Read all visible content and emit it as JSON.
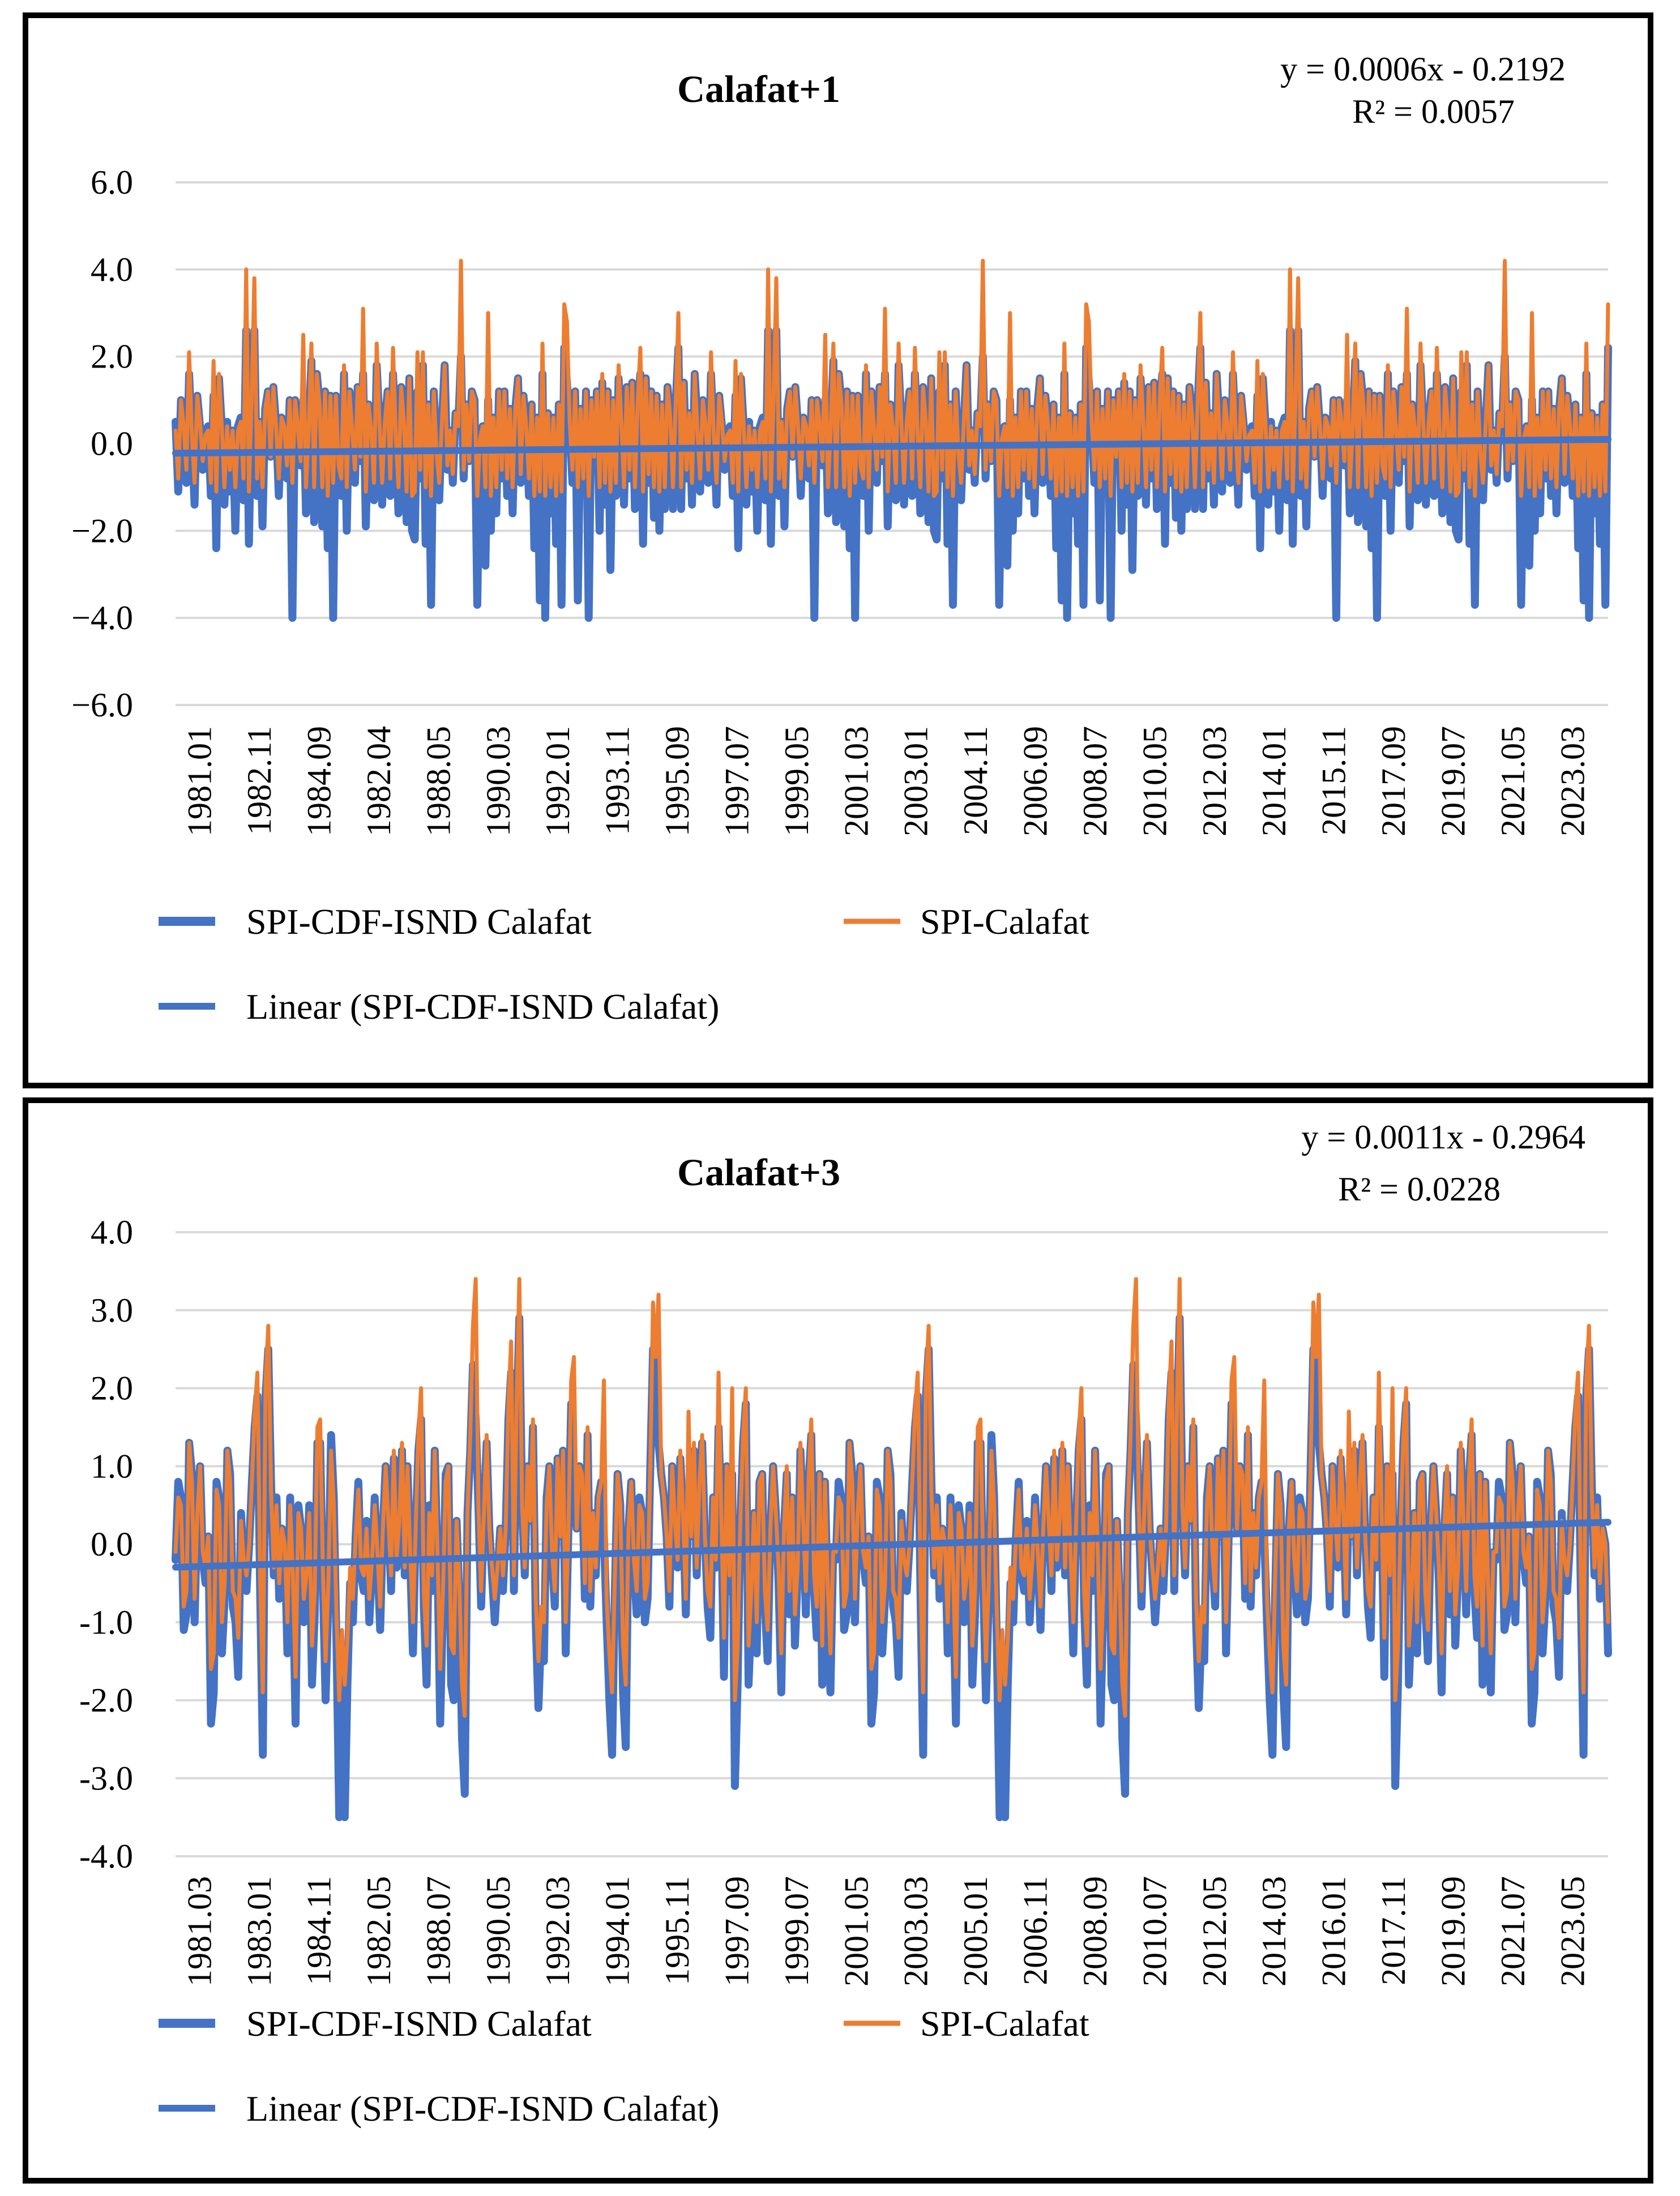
{
  "colors": {
    "cdf": "#4472C4",
    "spi": "#ED7D31",
    "trend": "#4472C4",
    "grid": "#D9D9D9"
  },
  "chart_data": [
    {
      "type": "line",
      "title": "Calafat+1",
      "equation": "y = 0.0006x - 0.2192",
      "r_squared": "R² = 0.0057",
      "ylim": [
        -6.0,
        6.0
      ],
      "yticks": [
        "6.0",
        "4.0",
        "2.0",
        "0.0",
        "−2.0",
        "−4.0",
        "−6.0"
      ],
      "ytick_values": [
        6,
        4,
        2,
        0,
        -2,
        -4,
        -6
      ],
      "x_tick_labels": [
        "1981.01",
        "1982.11",
        "1984.09",
        "1982.04",
        "1988.05",
        "1990.03",
        "1992.01",
        "1993.11",
        "1995.09",
        "1997.07",
        "1999.05",
        "2001.03",
        "2003.01",
        "2004.11",
        "2006.09",
        "2008.07",
        "2010.05",
        "2012.03",
        "2014.01",
        "2015.11",
        "2017.09",
        "2019.07",
        "2021.05",
        "2023.03"
      ],
      "n_points": 528,
      "trend": {
        "slope": 0.0006,
        "intercept": -0.2192
      },
      "legend": [
        "SPI-CDF-ISND Calafat",
        "SPI-Calafat",
        "Linear (SPI-CDF-ISND Calafat)"
      ],
      "series": [
        {
          "name": "SPI-CDF-ISND Calafat",
          "values": [
            0.5,
            -1.1,
            1.0,
            0.3,
            -0.9,
            1.6,
            0.2,
            -1.4,
            1.1,
            0.4,
            -0.6,
            0.3,
            0.4,
            -1.2,
            1.1,
            -2.4,
            1.5,
            0.4,
            -1.4,
            0.5,
            -1.1,
            0.3,
            -2.0,
            0.4,
            0.6,
            -1.3,
            2.6,
            -2.3,
            1.0,
            2.6,
            -1.2,
            0.5,
            -1.9,
            0.8,
            1.2,
            -0.3,
            1.3,
            0.4,
            -1.2,
            0.6,
            0.4,
            -0.8,
            1.0,
            -4.0,
            1.0,
            0.4,
            -0.5,
            1.0,
            -1.6,
            0.3,
            1.9,
            -1.8,
            1.6,
            0.9,
            -1.9,
            1.2,
            -2.4,
            1.1,
            -4.0,
            1.1,
            -0.6,
            -1.2,
            1.6,
            -2.0,
            1.2,
            0.3,
            -0.9,
            1.3,
            -0.4,
            1.6,
            -1.9,
            0.9,
            0.3,
            -1.3,
            1.8,
            0.5,
            -1.4,
            0.5,
            1.2,
            -1.2,
            1.6,
            0.2,
            -1.6,
            1.3,
            0.5,
            -1.8,
            1.5,
            -2.0,
            -2.2,
            1.2,
            -0.8,
            1.8,
            -2.3,
            0.9,
            -3.7,
            1.2,
            -0.2,
            -1.3,
            0.5,
            1.8,
            -0.6,
            0.3,
            -0.9,
            0.7,
            0.4,
            2.0,
            -0.8,
            0.9,
            -0.4,
            1.2,
            1.0,
            -3.7,
            0.1,
            0.4,
            -2.8,
            1.0,
            -2.0,
            0.6,
            -1.6,
            1.2,
            -0.8,
            1.2,
            -1.2,
            0.8,
            -1.6,
            0.8,
            1.5,
            -0.9,
            1.1,
            0.4,
            -1.2,
            0.9,
            -2.4,
            0.6,
            -3.6,
            1.6,
            -4.0,
            0.7,
            -1.6,
            0.6,
            -2.3,
            0.9,
            -3.7,
            2.2,
            1.4,
            0.5,
            -0.9,
            1.2,
            -3.6,
            0.8,
            -1.0,
            1.2,
            -4.0,
            1.0,
            -0.3,
            1.2,
            -2.0,
            1.4,
            -1.4,
            1.2,
            -2.9,
            1.0,
            -1.2,
            1.5,
            0.5,
            -1.4,
            1.3,
            -0.8,
            1.4,
            -1.5,
            0.9,
            1.6,
            -2.3,
            1.5,
            -0.9,
            1.2,
            -1.7,
            1.1,
            -2.0,
            0.9,
            -1.5,
            1.3,
            0.6,
            -1.5,
            0.9,
            2.2,
            -1.5,
            1.4,
            -0.8,
            0.7,
            -1.4,
            1.6
          ],
          "repeat_to": 528
        },
        {
          "name": "SPI-Calafat",
          "values": [
            0.3,
            -0.8,
            1.0,
            0.4,
            -0.6,
            2.1,
            0.2,
            -0.9,
            1.1,
            0.5,
            -0.4,
            0.2,
            0.3,
            -0.9,
            1.9,
            -1.1,
            1.6,
            0.4,
            -1.0,
            0.4,
            -0.6,
            0.3,
            -1.0,
            0.3,
            0.5,
            -0.8,
            4.0,
            -1.1,
            1.0,
            3.8,
            -0.8,
            0.5,
            -1.0,
            0.8,
            1.2,
            -0.3,
            1.3,
            0.4,
            -0.8,
            0.6,
            0.4,
            -0.5,
            1.0,
            -0.9,
            1.0,
            0.4,
            -0.4,
            2.5,
            -1.0,
            0.3,
            2.3,
            -1.0,
            1.6,
            0.9,
            -1.0,
            1.2,
            -1.2,
            1.1,
            -0.9,
            1.1,
            -0.5,
            -0.8,
            1.8,
            -1.0,
            1.2,
            0.3,
            -0.6,
            1.3,
            -0.3,
            3.1,
            -1.1,
            0.9,
            0.3,
            -0.9,
            2.3,
            0.5,
            -0.9,
            0.5,
            1.2,
            -0.8,
            2.2,
            0.2,
            -1.0,
            1.3,
            0.5,
            -1.1,
            1.5,
            -1.2,
            -1.1,
            2.1,
            -0.6,
            2.1,
            -1.0,
            0.9,
            -1.2,
            1.2,
            -0.2,
            -0.9,
            0.5,
            1.8,
            -0.5,
            0.3,
            -0.7,
            0.7,
            0.4,
            4.2,
            -0.6,
            0.9,
            -0.4,
            1.2,
            1.0,
            -1.2,
            0.1,
            0.4,
            -1.0,
            3.0,
            -1.2,
            0.6,
            -1.0,
            1.2,
            -0.6,
            1.2,
            -0.8,
            0.8,
            -1.0,
            0.8,
            1.5,
            -0.7,
            1.1,
            0.4,
            -0.8,
            0.9,
            -1.2,
            0.6,
            -1.1,
            2.3,
            -1.2,
            0.7,
            -1.0,
            0.6,
            -1.2,
            0.9,
            -1.1,
            3.2,
            2.8,
            0.5,
            -0.6,
            1.2,
            -1.0,
            0.8,
            -0.8,
            1.2,
            -1.2,
            1.0,
            -0.3,
            1.2,
            -1.0,
            1.6,
            -0.9,
            1.2,
            -1.1,
            1.0,
            -0.9,
            1.8,
            0.5,
            -1.0,
            1.3,
            -0.6,
            1.4,
            -1.0,
            0.9,
            2.2,
            -1.1,
            1.5,
            -0.7,
            1.2,
            -1.0,
            1.1,
            -1.1,
            0.9,
            -1.0,
            1.3,
            0.6,
            -1.0,
            0.9,
            3.0,
            -1.0,
            1.4,
            -0.6,
            0.7,
            -0.9,
            1.6
          ],
          "repeat_to": 528
        }
      ]
    },
    {
      "type": "line",
      "title": "Calafat+3",
      "equation": "y = 0.0011x - 0.2964",
      "r_squared": "R² = 0.0228",
      "ylim": [
        -4.0,
        4.0
      ],
      "yticks": [
        "4.0",
        "3.0",
        "2.0",
        "1.0",
        "0.0",
        "-1.0",
        "-2.0",
        "-3.0",
        "-4.0"
      ],
      "ytick_values": [
        4,
        3,
        2,
        1,
        0,
        -1,
        -2,
        -3,
        -4
      ],
      "x_tick_labels": [
        "1981.03",
        "1983.01",
        "1984.11",
        "1982.05",
        "1988.07",
        "1990.05",
        "1992.03",
        "1994.01",
        "1995.11",
        "1997.09",
        "1999.07",
        "2001.05",
        "2003.03",
        "2005.01",
        "2006.11",
        "2008.09",
        "2010.07",
        "2012.05",
        "2014.03",
        "2016.01",
        "2017.11",
        "2019.09",
        "2021.07",
        "2023.05"
      ],
      "n_points": 526,
      "trend": {
        "slope": 0.0011,
        "intercept": -0.2964
      },
      "legend": [
        "SPI-CDF-ISND Calafat",
        "SPI-Calafat",
        "Linear (SPI-CDF-ISND Calafat)"
      ],
      "series": [
        {
          "name": "SPI-CDF-ISND Calafat",
          "values": [
            -0.2,
            0.8,
            0.6,
            -1.1,
            -0.9,
            1.3,
            0.9,
            -1.0,
            0.5,
            1.0,
            -0.2,
            -0.5,
            0.1,
            -2.3,
            -1.9,
            0.8,
            0.6,
            -1.4,
            -0.7,
            1.2,
            0.9,
            -0.8,
            -1.0,
            -1.7,
            0.4,
            -0.3,
            -0.6,
            0.0,
            0.8,
            1.5,
            1.9,
            -0.6,
            -2.7,
            1.9,
            2.5,
            0.8,
            -0.4,
            0.6,
            -0.7,
            0.2,
            0.0,
            -1.4,
            0.6,
            -0.5,
            -2.3,
            0.5,
            0.2,
            -1.0,
            -0.6,
            0.5,
            -1.8,
            -0.9,
            1.3,
            1.3,
            -0.5,
            -2.0,
            -0.7,
            1.4,
            0.6,
            -1.3,
            -3.5,
            -1.6,
            -3.5,
            -1.8,
            -0.5,
            -1.0,
            0.1,
            0.8,
            -0.4,
            -0.6,
            0.3,
            -1.0,
            -0.3,
            0.6,
            -0.2,
            -1.1,
            0.2,
            1.0,
            0.4,
            -0.6,
            1.1,
            -0.3,
            0.3,
            1.2,
            -0.4,
            1.0,
            -0.2,
            -1.4,
            0.2,
            1.2,
            1.6,
            -0.8,
            -1.8,
            0.5,
            -0.6,
            1.2,
            -0.2,
            -2.3,
            -0.8,
            0.9,
            1.0,
            -1.8,
            -2.0,
            0.3,
            -0.7,
            -2.5,
            -3.2,
            0.4,
            1.2,
            2.3,
            1.6,
            0.5,
            -0.8,
            0.4,
            1.3,
            0.2,
            -0.4,
            -1.0,
            -0.4,
            0.2,
            -0.6,
            0.2,
            1.6,
            2.2,
            -0.6,
            1.6,
            2.9,
            0.5,
            -0.4,
            1.0,
            0.3,
            1.5,
            -1.0,
            -2.1,
            -1.1,
            -1.5,
            0.6,
            1.0,
            -0.2,
            -0.8,
            1.1,
            0.1,
            1.2,
            -1.4,
            0.2,
            1.8,
            0.6,
            0.2,
            1.0,
            0.9,
            -0.7,
            1.4,
            -0.8,
            0.4,
            -0.4,
            0.6,
            0.8,
            0.1,
            -1.0,
            -2.0,
            -2.7,
            -0.6,
            0.9,
            0.5,
            -1.9,
            -2.6,
            0.2,
            0.8,
            -0.3,
            -0.9,
            0.6,
            0.4,
            -1.0,
            -0.7,
            1.0,
            2.5,
            2.0,
            1.3,
            0.9,
            0.6,
            0.1,
            -0.8,
            1.0,
            0.3,
            -0.3,
            1.1,
            0.4,
            -0.9,
            0.6,
            0.1,
            1.2,
            -0.4,
            0.8,
            1.3,
            0.1,
            -0.8,
            -1.2,
            0.6,
            -0.3,
            1.5,
            0.4,
            -1.7,
            1.0,
            -0.6,
            0.9,
            -3.1,
            -1.8,
            0.3,
            1.3,
            1.8,
            -1.8,
            -0.9,
            0.4,
            -1.4,
            0.8,
            0.9,
            -0.8,
            -1.5,
            0.2,
            1.0,
            0.4,
            -0.5,
            -1.9,
            0.2,
            0.9,
            -0.9,
            0.6,
            -1.3,
            -0.4,
            1.2,
            0.3,
            -0.9,
            0.8,
            1.4,
            -0.6,
            -1.2,
            0.9,
            -1.8,
            0.8,
            -0.7,
            -1.9,
            -0.1
          ],
          "repeat_to": 526
        },
        {
          "name": "SPI-Calafat",
          "values": [
            -0.1,
            0.6,
            0.5,
            -0.8,
            -0.6,
            1.3,
            0.8,
            -0.7,
            0.4,
            1.0,
            -0.1,
            -0.3,
            0.1,
            -1.6,
            -1.4,
            0.7,
            0.5,
            -1.0,
            -0.5,
            1.2,
            0.8,
            -0.6,
            -0.7,
            -1.2,
            0.3,
            -0.2,
            -0.4,
            0.0,
            0.8,
            1.7,
            2.2,
            -0.4,
            -1.9,
            2.1,
            2.8,
            0.7,
            -0.3,
            0.5,
            -0.5,
            0.2,
            0.0,
            -1.0,
            0.5,
            -0.4,
            -1.7,
            0.4,
            0.2,
            -0.7,
            -0.4,
            0.4,
            -1.3,
            -0.6,
            1.5,
            1.6,
            -0.3,
            -1.5,
            -0.5,
            1.2,
            0.5,
            -0.9,
            -2.0,
            -1.1,
            -1.8,
            -1.2,
            -0.3,
            -0.7,
            0.1,
            0.7,
            -0.3,
            -0.4,
            0.2,
            -0.7,
            -0.2,
            0.5,
            -0.1,
            -0.8,
            0.2,
            1.0,
            0.3,
            -0.4,
            1.2,
            -0.2,
            0.3,
            1.3,
            -0.3,
            1.0,
            -0.1,
            -1.0,
            0.2,
            1.4,
            2.0,
            -0.6,
            -1.3,
            0.4,
            -0.4,
            1.2,
            -0.1,
            -1.6,
            -0.6,
            0.8,
            1.0,
            -1.3,
            -1.4,
            0.3,
            -0.5,
            -1.8,
            -2.2,
            0.4,
            1.4,
            2.8,
            3.4,
            0.5,
            -0.6,
            0.4,
            1.4,
            0.2,
            -0.3,
            -0.7,
            -0.3,
            0.2,
            -0.4,
            0.2,
            1.8,
            2.6,
            -0.4,
            1.8,
            3.4,
            0.5,
            -0.3,
            1.0,
            0.3,
            1.6,
            -0.7,
            -1.5,
            -0.8,
            -1.0,
            0.5,
            1.0,
            -0.1,
            -0.6,
            1.1,
            0.1,
            1.2,
            -1.0,
            0.2,
            2.1,
            2.4,
            0.2,
            1.0,
            0.9,
            -0.5,
            1.5,
            -0.6,
            0.4,
            -0.3,
            0.6,
            0.8,
            2.1,
            -0.7,
            -1.4,
            -1.9,
            -0.4,
            0.9,
            0.5,
            -1.3,
            -1.8,
            0.2,
            0.8,
            -0.2,
            -0.6,
            0.5,
            0.4,
            -0.7,
            -0.5,
            1.0,
            3.1,
            2.4,
            3.2,
            0.9,
            0.6,
            0.1,
            -0.6,
            1.0,
            0.3,
            -0.2,
            1.2,
            0.4,
            -0.7,
            1.7,
            0.1,
            1.3,
            -0.3,
            0.8,
            1.4,
            0.1,
            -0.6,
            -0.8,
            0.6,
            -0.2,
            2.2,
            0.4,
            -1.2,
            1.0,
            -0.4,
            2.0,
            -2.0,
            -1.3,
            0.3,
            1.4,
            2.0,
            -1.3,
            -0.6,
            0.4,
            -1.0,
            0.8,
            0.9,
            -0.6,
            -1.1,
            0.2,
            1.0,
            0.4,
            -0.3,
            -1.4,
            0.2,
            1.0,
            -0.6,
            0.6,
            -0.9,
            -0.3,
            1.3,
            0.3,
            -0.6,
            0.8,
            1.6,
            -0.4,
            -0.8,
            0.9,
            -1.3,
            0.8,
            -0.5,
            -1.4,
            -0.1
          ],
          "repeat_to": 526
        }
      ]
    }
  ]
}
